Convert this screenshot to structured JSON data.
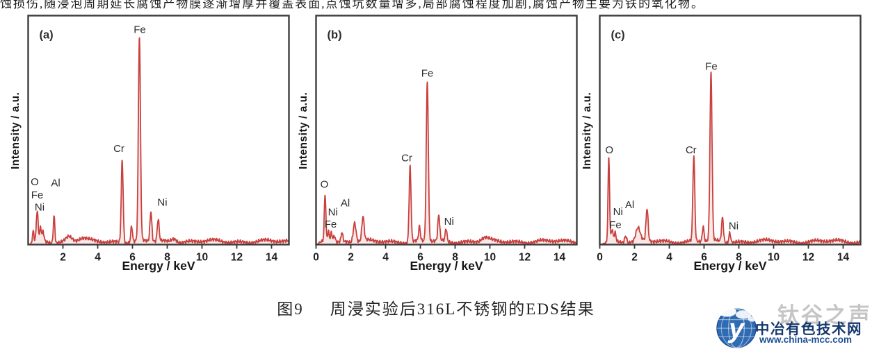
{
  "page": {
    "top_text": "蚀损伤,随浸泡周期延长腐蚀产物膜逐渐增厚并覆盖表面,点蚀坑数量增多,局部腐蚀程度加剧,腐蚀产物主要为铁的氧化物。",
    "background": "#ffffff"
  },
  "caption": {
    "number": "图9",
    "title": "周浸实验后316L不锈钢的EDS结果"
  },
  "brand": {
    "overlay_text": "钛谷之声",
    "site_name": "中冶有色技术网",
    "site_url": "www.china-mcc.com",
    "globe_letter": "y",
    "globe_color": "#2e6bb3",
    "site_text_color": "#16386f",
    "overlay_color": "#969696"
  },
  "chart_data": [
    {
      "type": "line",
      "panel_label": "(a)",
      "xlabel": "Energy / keV",
      "ylabel": "Intensity / a.u.",
      "xlim": [
        0,
        15
      ],
      "ylim": [
        0,
        1
      ],
      "x_ticks": [
        2,
        4,
        6,
        8,
        10,
        12,
        14
      ],
      "grid": false,
      "legend": false,
      "line_color": "#c9403d",
      "fill_color": "rgba(201,64,61,0.12)",
      "frame_color": "#3d3d3d",
      "baseline": 0.018,
      "peaks": [
        {
          "element": "C/edge",
          "x": 0.28,
          "height": 0.07,
          "width": 0.04
        },
        {
          "element": "O Ka",
          "x": 0.52,
          "height": 0.13,
          "width": 0.05
        },
        {
          "element": "Fe La",
          "x": 0.71,
          "height": 0.055,
          "width": 0.05
        },
        {
          "element": "Ni La",
          "x": 0.86,
          "height": 0.04,
          "width": 0.05
        },
        {
          "element": "Al Ka",
          "x": 1.49,
          "height": 0.12,
          "width": 0.045
        },
        {
          "element": "bump",
          "x": 2.35,
          "height": 0.022,
          "width": 0.18
        },
        {
          "element": "bump",
          "x": 3.1,
          "height": 0.012,
          "width": 0.25
        },
        {
          "element": "Cr Ka",
          "x": 5.41,
          "height": 0.36,
          "width": 0.055
        },
        {
          "element": "Cr Kb",
          "x": 5.95,
          "height": 0.07,
          "width": 0.05
        },
        {
          "element": "Fe Ka",
          "x": 6.4,
          "height": 0.89,
          "width": 0.06
        },
        {
          "element": "Fe Kb",
          "x": 7.06,
          "height": 0.13,
          "width": 0.055
        },
        {
          "element": "Ni Ka",
          "x": 7.48,
          "height": 0.095,
          "width": 0.055
        },
        {
          "element": "bump",
          "x": 8.4,
          "height": 0.018,
          "width": 0.15
        }
      ],
      "labels": [
        {
          "text": "O",
          "x": 0.38,
          "y": 0.25
        },
        {
          "text": "Fe",
          "x": 0.52,
          "y": 0.193
        },
        {
          "text": "Ni",
          "x": 0.66,
          "y": 0.14
        },
        {
          "text": "Al",
          "x": 1.58,
          "y": 0.245
        },
        {
          "text": "Cr",
          "x": 5.22,
          "y": 0.395
        },
        {
          "text": "Fe",
          "x": 6.42,
          "y": 0.915
        },
        {
          "text": "Ni",
          "x": 7.72,
          "y": 0.16
        }
      ]
    },
    {
      "type": "line",
      "panel_label": "(b)",
      "xlabel": "Energy / keV",
      "ylabel": "Intensity / a.u.",
      "xlim": [
        0,
        15
      ],
      "ylim": [
        0,
        1
      ],
      "x_ticks": [
        0,
        2,
        4,
        6,
        8,
        10,
        12,
        14
      ],
      "grid": false,
      "legend": false,
      "line_color": "#c9403d",
      "fill_color": "rgba(201,64,61,0.12)",
      "frame_color": "#3d3d3d",
      "baseline": 0.018,
      "peaks": [
        {
          "element": "O Ka",
          "x": 0.52,
          "height": 0.21,
          "width": 0.045
        },
        {
          "element": "Fe La",
          "x": 0.71,
          "height": 0.05,
          "width": 0.05
        },
        {
          "element": "Ni La",
          "x": 0.88,
          "height": 0.045,
          "width": 0.05
        },
        {
          "element": "bump",
          "x": 1.05,
          "height": 0.03,
          "width": 0.06
        },
        {
          "element": "Al Ka",
          "x": 1.49,
          "height": 0.04,
          "width": 0.05
        },
        {
          "element": "bump",
          "x": 2.22,
          "height": 0.085,
          "width": 0.08
        },
        {
          "element": "bump",
          "x": 2.7,
          "height": 0.105,
          "width": 0.065
        },
        {
          "element": "Cr Ka",
          "x": 5.41,
          "height": 0.33,
          "width": 0.055
        },
        {
          "element": "Cr Kb",
          "x": 5.95,
          "height": 0.06,
          "width": 0.05
        },
        {
          "element": "Fe Ka",
          "x": 6.4,
          "height": 0.7,
          "width": 0.06
        },
        {
          "element": "Fe Kb",
          "x": 7.06,
          "height": 0.11,
          "width": 0.055
        },
        {
          "element": "Ni Ka",
          "x": 7.48,
          "height": 0.055,
          "width": 0.05
        },
        {
          "element": "bump",
          "x": 9.7,
          "height": 0.015,
          "width": 0.2
        }
      ],
      "labels": [
        {
          "text": "O",
          "x": 0.48,
          "y": 0.24
        },
        {
          "text": "Ni",
          "x": 0.97,
          "y": 0.118
        },
        {
          "text": "Fe",
          "x": 0.84,
          "y": 0.065
        },
        {
          "text": "Al",
          "x": 1.68,
          "y": 0.158
        },
        {
          "text": "Cr",
          "x": 5.22,
          "y": 0.355
        },
        {
          "text": "Fe",
          "x": 6.4,
          "y": 0.725
        },
        {
          "text": "Ni",
          "x": 7.65,
          "y": 0.078
        }
      ]
    },
    {
      "type": "line",
      "panel_label": "(c)",
      "xlabel": "Energy / keV",
      "ylabel": "Intensity / a.u.",
      "xlim": [
        0,
        15
      ],
      "ylim": [
        0,
        1
      ],
      "x_ticks": [
        0,
        2,
        4,
        6,
        8,
        10,
        12,
        14
      ],
      "grid": false,
      "legend": false,
      "line_color": "#c9403d",
      "fill_color": "rgba(201,64,61,0.12)",
      "frame_color": "#3d3d3d",
      "baseline": 0.018,
      "peaks": [
        {
          "element": "O Ka",
          "x": 0.52,
          "height": 0.37,
          "width": 0.045
        },
        {
          "element": "Fe La",
          "x": 0.71,
          "height": 0.055,
          "width": 0.05
        },
        {
          "element": "Ni La",
          "x": 0.88,
          "height": 0.04,
          "width": 0.05
        },
        {
          "element": "Al Ka",
          "x": 1.49,
          "height": 0.03,
          "width": 0.06
        },
        {
          "element": "bump",
          "x": 2.2,
          "height": 0.055,
          "width": 0.12
        },
        {
          "element": "bump",
          "x": 2.72,
          "height": 0.14,
          "width": 0.06
        },
        {
          "element": "Cr Ka",
          "x": 5.41,
          "height": 0.37,
          "width": 0.055
        },
        {
          "element": "Cr Kb",
          "x": 5.95,
          "height": 0.065,
          "width": 0.05
        },
        {
          "element": "Fe Ka",
          "x": 6.4,
          "height": 0.73,
          "width": 0.06
        },
        {
          "element": "Fe Kb",
          "x": 7.06,
          "height": 0.105,
          "width": 0.055
        },
        {
          "element": "Ni Ka",
          "x": 7.48,
          "height": 0.045,
          "width": 0.05
        }
      ],
      "labels": [
        {
          "text": "O",
          "x": 0.55,
          "y": 0.39
        },
        {
          "text": "Ni",
          "x": 1.05,
          "y": 0.12
        },
        {
          "text": "Fe",
          "x": 0.9,
          "y": 0.062
        },
        {
          "text": "Al",
          "x": 1.72,
          "y": 0.15
        },
        {
          "text": "Cr",
          "x": 5.25,
          "y": 0.39
        },
        {
          "text": "Fe",
          "x": 6.42,
          "y": 0.755
        },
        {
          "text": "Ni",
          "x": 7.7,
          "y": 0.058
        }
      ]
    }
  ]
}
